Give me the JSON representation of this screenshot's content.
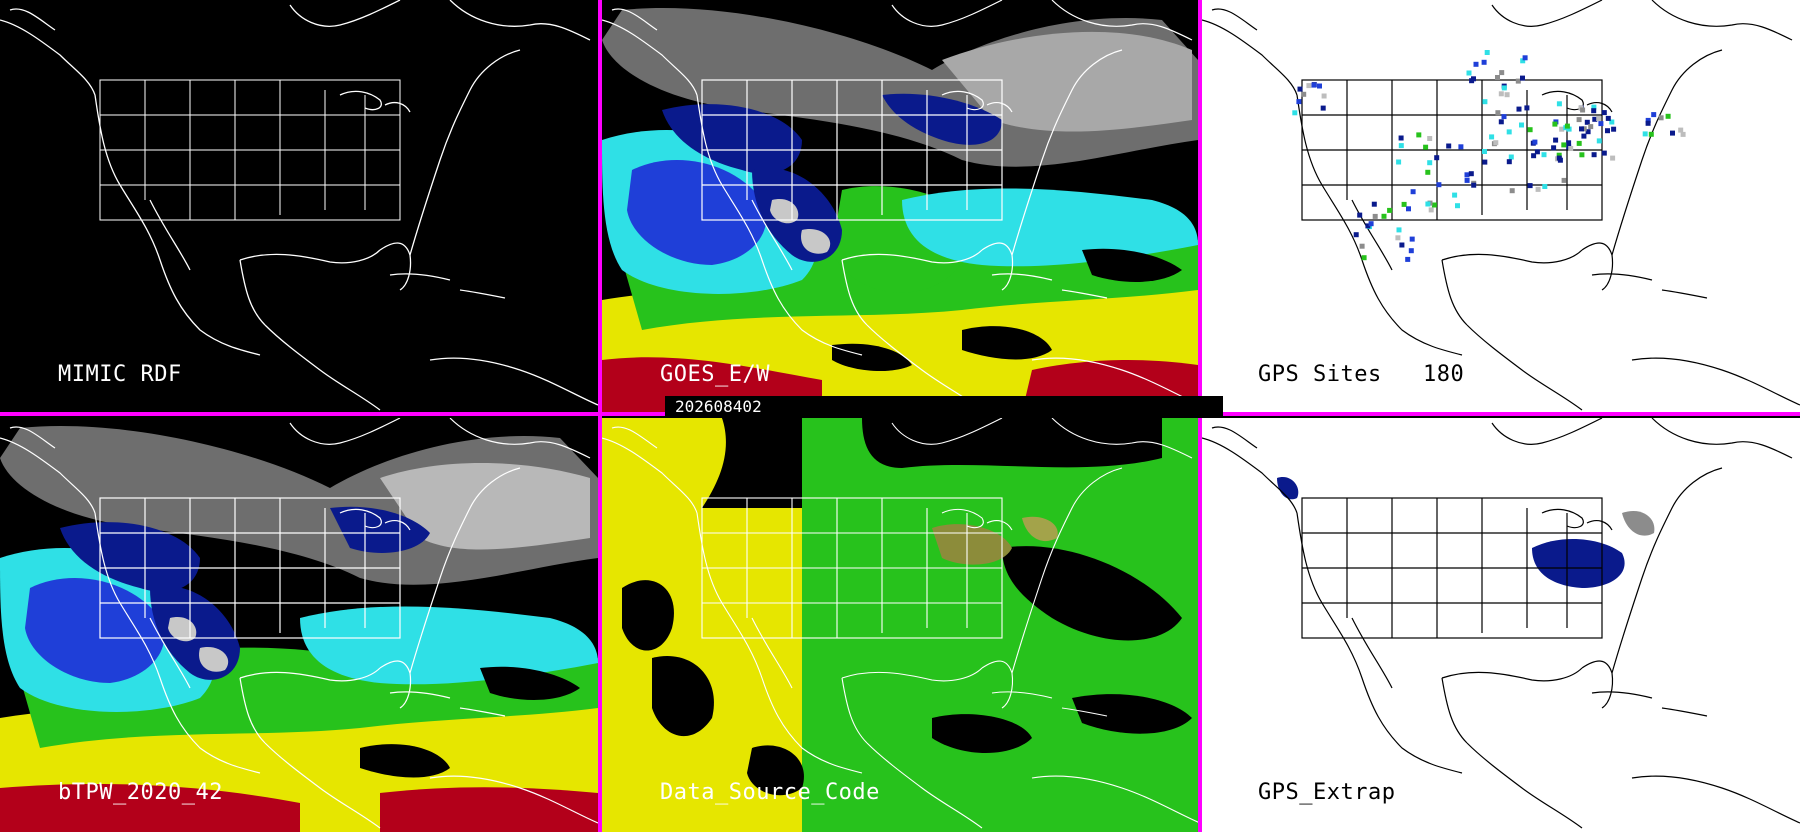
{
  "panels": {
    "mimic_rdf": {
      "label": "MIMIC RDF"
    },
    "goes_ew": {
      "label": "GOES_E/W"
    },
    "gps_sites": {
      "label": "GPS Sites",
      "count": "180"
    },
    "btpw": {
      "label": "bTPW_2020_42"
    },
    "data_source": {
      "label": "Data_Source_Code"
    },
    "gps_extrap": {
      "label": "GPS_Extrap"
    }
  },
  "timestamp": "202608402",
  "colors": {
    "divider": "#ff00ff",
    "background_dark": "#000000",
    "background_light": "#ffffff",
    "moisture_dry_navy": "#0a1a8c",
    "moisture_blue": "#1f3fd8",
    "moisture_cyan": "#2fe0e6",
    "moisture_green": "#27c21c",
    "moisture_yellow": "#e6e600",
    "moisture_red": "#b3001a",
    "moisture_gray": "#8c8c8c"
  }
}
